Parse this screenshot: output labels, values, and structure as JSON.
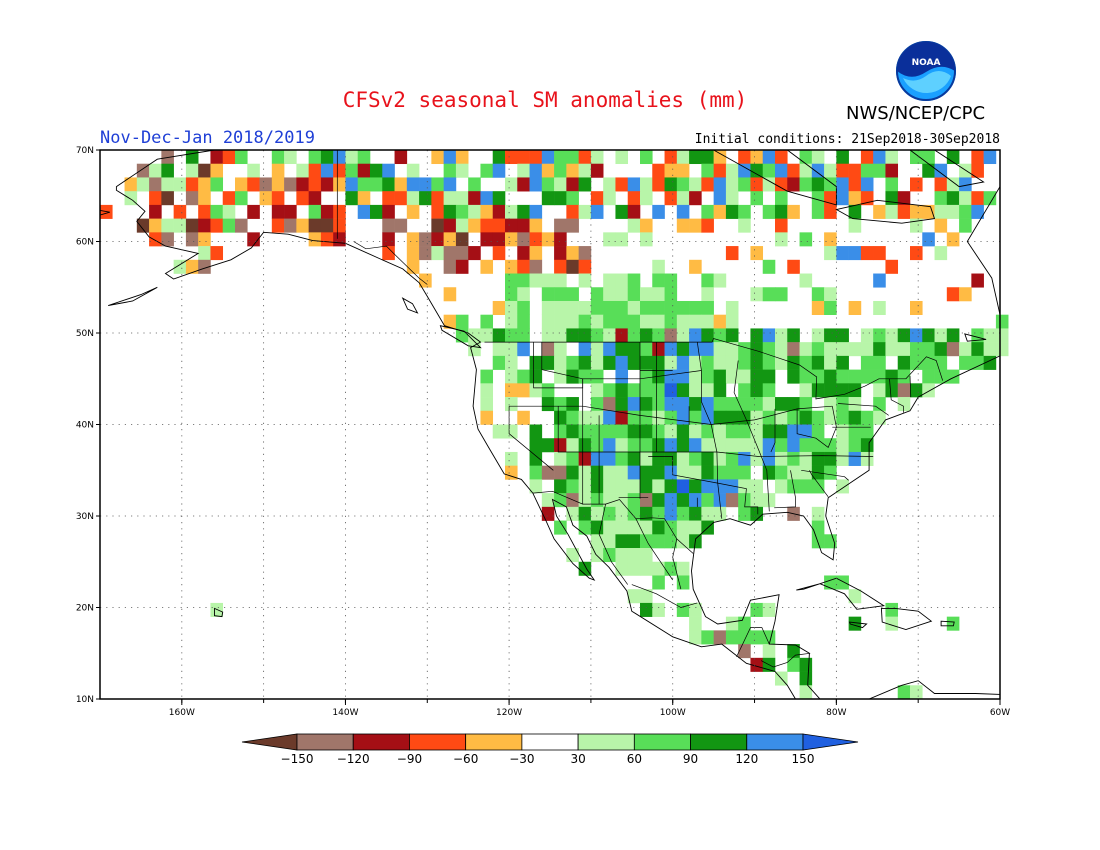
{
  "title": "CFSv2 seasonal SM anomalies (mm)",
  "agency": "NWS/NCEP/CPC",
  "period": "Nov-Dec-Jan 2018/2019",
  "initial_conditions": "Initial conditions: 21Sep2018-30Sep2018",
  "logo_text": "NOAA",
  "map": {
    "lat_ticks": [
      "70N",
      "60N",
      "50N",
      "40N",
      "30N",
      "20N",
      "10N"
    ],
    "lon_ticks": [
      "160W",
      "140W",
      "120W",
      "100W",
      "80W",
      "60W"
    ],
    "lon_range": [
      -170,
      -60
    ],
    "lat_range": [
      10,
      70
    ],
    "grid_lines": "dotted"
  },
  "colorbar": {
    "labels": [
      "-150",
      "-120",
      "-90",
      "-60",
      "-30",
      "30",
      "60",
      "90",
      "120",
      "150"
    ],
    "colors": [
      "#6b3a2a",
      "#a0766a",
      "#a50f15",
      "#ff4a14",
      "#ffbb44",
      "#ffffff",
      "#b8f5a9",
      "#58de58",
      "#129612",
      "#3a8ee8",
      "#2060e0"
    ]
  }
}
